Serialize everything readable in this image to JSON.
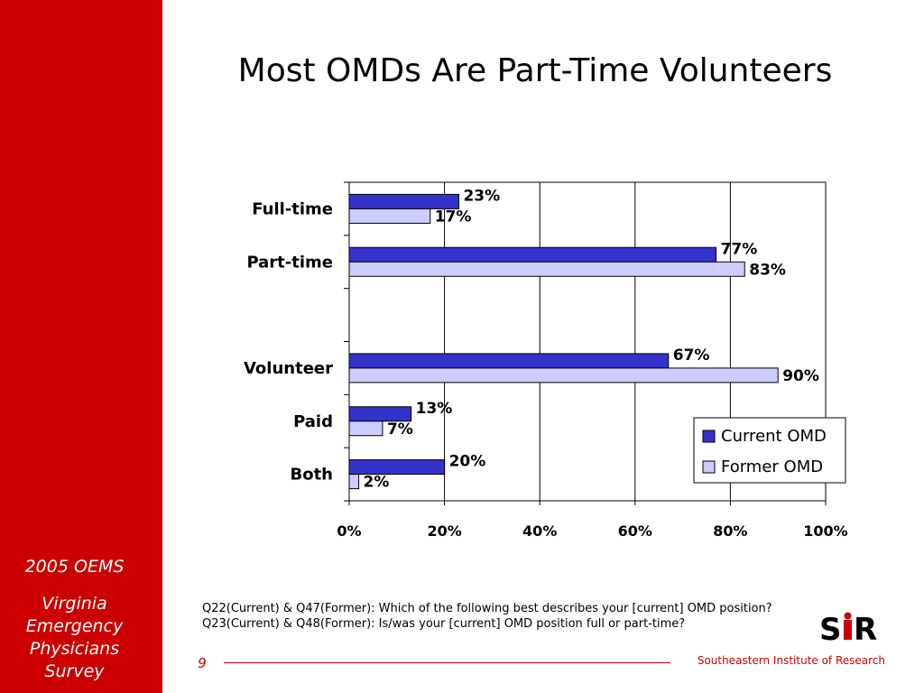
{
  "sidebar": {
    "year_label": "2005 OEMS",
    "survey_lines": [
      "Virginia",
      "Emergency",
      "Physicians",
      "Survey"
    ]
  },
  "title": "Most OMDs Are Part-Time Volunteers",
  "colors": {
    "sidebar_red": "#cc0000",
    "current_fill": "#3333cc",
    "former_fill": "#ccccff"
  },
  "chart_data": {
    "type": "bar",
    "orientation": "horizontal",
    "categories": [
      "Full-time",
      "Part-time",
      "",
      "Volunteer",
      "Paid",
      "Both"
    ],
    "series": [
      {
        "name": "Current OMD",
        "values": [
          23,
          77,
          null,
          67,
          13,
          20
        ],
        "labels": [
          "23%",
          "77%",
          "",
          "67%",
          "13%",
          "20%"
        ]
      },
      {
        "name": "Former OMD",
        "values": [
          17,
          83,
          null,
          90,
          7,
          2
        ],
        "labels": [
          "17%",
          "83%",
          "",
          "90%",
          "7%",
          "2%"
        ]
      }
    ],
    "xlim": [
      0,
      100
    ],
    "xticks": [
      0,
      20,
      40,
      60,
      80,
      100
    ],
    "xtick_labels": [
      "0%",
      "20%",
      "40%",
      "60%",
      "80%",
      "100%"
    ],
    "grid": "vertical",
    "legend_position": "bottom-right"
  },
  "footnote": {
    "line1": "Q22(Current) & Q47(Former): Which of the following best describes your [current] OMD position?",
    "line2": "Q23(Current) & Q48(Former): Is/was your [current] OMD position full or part-time?"
  },
  "footer": {
    "page_number": "9",
    "organization": "Southeastern Institute of Research"
  },
  "logo": {
    "text": "SIR",
    "icon": "sir-logo-icon"
  }
}
